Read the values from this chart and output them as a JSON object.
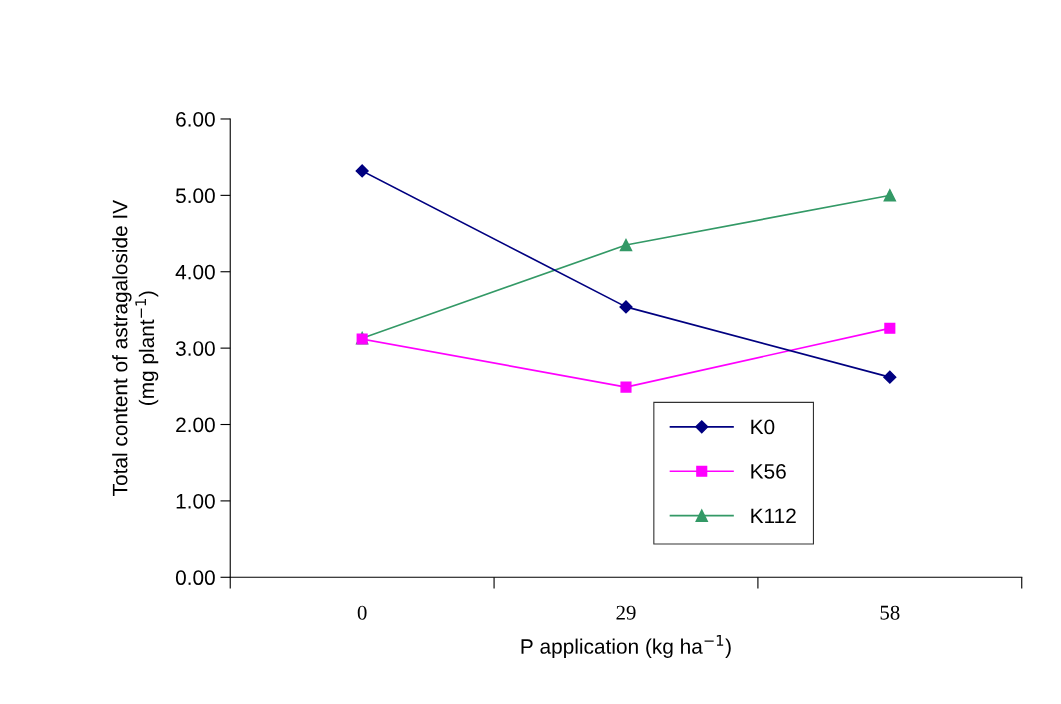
{
  "chart_data": {
    "type": "line",
    "xlabel": "P application (kg ha$^{−1}$)",
    "ylabel": "Total content of astragaloside IV\n(mg plant$^{−1}$)",
    "x": [
      0,
      29,
      58
    ],
    "series": [
      {
        "name": "K0",
        "color": "#000080",
        "marker": "diamond",
        "values": [
          5.32,
          3.54,
          2.62
        ]
      },
      {
        "name": "K56",
        "color": "#ff00ff",
        "marker": "square",
        "values": [
          3.12,
          2.49,
          3.26
        ]
      },
      {
        "name": "K112",
        "color": "#339966",
        "marker": "triangle",
        "values": [
          3.13,
          4.35,
          5.0
        ]
      }
    ],
    "xlim": [
      -14.5,
      72.5
    ],
    "xticks": [
      {
        "value": -14.5,
        "label": null
      },
      0,
      {
        "value": 14.5,
        "label": null
      },
      29,
      {
        "value": 43.5,
        "label": null
      },
      58,
      {
        "value": 72.5,
        "label": null
      }
    ],
    "ylim": [
      0,
      6
    ],
    "yticks": [
      {
        "value": 0,
        "label": "0.00"
      },
      {
        "value": 1,
        "label": "1.00"
      },
      {
        "value": 2,
        "label": "2.00"
      },
      {
        "value": 3,
        "label": "3.00"
      },
      {
        "value": 4,
        "label": "4.00"
      },
      {
        "value": 5,
        "label": "5.00"
      },
      {
        "value": 6,
        "label": "6.00"
      }
    ],
    "grid": false,
    "legend": "bottom right",
    "line_style": "solid"
  }
}
